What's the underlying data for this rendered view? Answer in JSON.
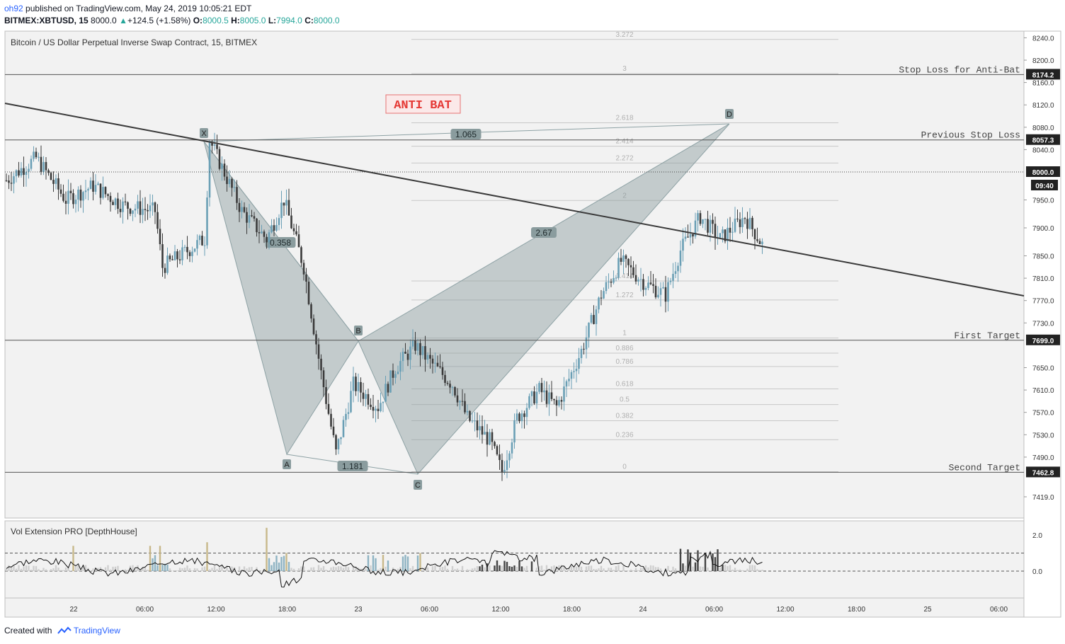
{
  "header": {
    "user": "oh92",
    "published": "published on TradingView.com, May 24, 2019 10:05:21 EDT",
    "symbol": "BITMEX:XBTUSD, 15",
    "price": "8000.0",
    "change": "+124.5 (+1.58%)",
    "o_label": "O:",
    "o": "8000.5",
    "h_label": "H:",
    "h": "8005.0",
    "l_label": "L:",
    "l": "7994.0",
    "c_label": "C:",
    "c": "8000.0"
  },
  "pane_title": "Bitcoin / US Dollar Perpetual Inverse Swap Contract, 15, BITMEX",
  "indicator_title": "Vol Extension PRO [DepthHouse]",
  "footer": {
    "created": "Created with",
    "brand": "TradingView"
  },
  "colors": {
    "up": "#6a9fb5",
    "down": "#3a3a3a",
    "pattern_fill": "#8a9c9e",
    "pattern_edge": "#8ea2a5",
    "trendline": "#3a3a3a",
    "fib": "#c8c8c8",
    "vol_gold": "#c8b88a",
    "vol_blue": "#8eb3c3",
    "vol_grey": "#cfcfcf",
    "vol_dark": "#444444"
  },
  "chart_data": {
    "type": "candlestick",
    "price_axis": {
      "ticks": [
        8240.0,
        8200.0,
        8160.0,
        8120.0,
        8080.0,
        8040.0,
        7950.0,
        7900.0,
        7850.0,
        7810.0,
        7770.0,
        7730.0,
        7650.0,
        7610.0,
        7570.0,
        7530.0,
        7490.0,
        7419.0
      ],
      "range": [
        7400,
        8270
      ]
    },
    "price_labels": [
      {
        "value": 8174.2,
        "text": "8174.2"
      },
      {
        "value": 8057.3,
        "text": "8057.3"
      },
      {
        "value": 8000.0,
        "text": "8000.0"
      },
      {
        "value": 7699.0,
        "text": "7699.0"
      },
      {
        "value": 7462.8,
        "text": "7462.8"
      }
    ],
    "countdown": "09:40",
    "time_axis": [
      "22",
      "06:00",
      "12:00",
      "18:00",
      "23",
      "06:00",
      "12:00",
      "18:00",
      "24",
      "06:00",
      "12:00",
      "18:00",
      "25",
      "06:00"
    ],
    "horizontal_lines": [
      {
        "value": 8174.2,
        "label": "Stop Loss for Anti-Bat"
      },
      {
        "value": 8057.3,
        "label": "Previous Stop Loss"
      },
      {
        "value": 7699.0,
        "label": "First Target"
      },
      {
        "value": 7462.8,
        "label": "Second Target"
      }
    ],
    "current_price": 8000.0,
    "fib_levels": [
      {
        "ratio": "3.272",
        "value": 8237
      },
      {
        "ratio": "3",
        "value": 8176
      },
      {
        "ratio": "2.618",
        "value": 8088
      },
      {
        "ratio": "2.414",
        "value": 8046
      },
      {
        "ratio": "2.272",
        "value": 8016
      },
      {
        "ratio": "2",
        "value": 7949
      },
      {
        "ratio": "1.414",
        "value": 7805
      },
      {
        "ratio": "1.272",
        "value": 7771
      },
      {
        "ratio": "1",
        "value": 7703
      },
      {
        "ratio": "0.886",
        "value": 7676
      },
      {
        "ratio": "0.786",
        "value": 7652
      },
      {
        "ratio": "0.618",
        "value": 7612
      },
      {
        "ratio": "0.5",
        "value": 7584
      },
      {
        "ratio": "0.382",
        "value": 7555
      },
      {
        "ratio": "0.236",
        "value": 7521
      },
      {
        "ratio": "0",
        "value": 7464
      }
    ],
    "pattern": {
      "name": "ANTI BAT",
      "points": [
        {
          "label": "X",
          "value": 8057
        },
        {
          "label": "A",
          "value": 7497
        },
        {
          "label": "B",
          "value": 7699
        },
        {
          "label": "C",
          "value": 7463
        },
        {
          "label": "D",
          "value": 8090
        }
      ],
      "ratios": [
        {
          "text": "0.358",
          "leg": "XAB"
        },
        {
          "text": "1.181",
          "leg": "AC"
        },
        {
          "text": "2.67",
          "leg": "BCD"
        },
        {
          "text": "1.065",
          "leg": "XD"
        }
      ]
    },
    "volume_axis": {
      "ticks": [
        2.0,
        0.0
      ]
    }
  }
}
